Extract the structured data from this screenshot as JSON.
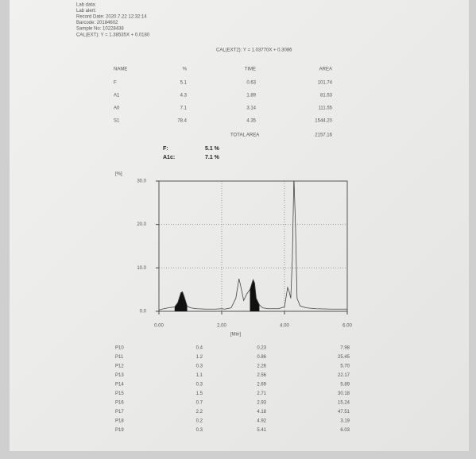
{
  "header": {
    "lines": [
      "Lab data:",
      "Lab alert:",
      "Record Date: 2020.7.22 12:32:14",
      "Barcode: 20184602",
      "Sample No: 10228438"
    ],
    "cal_ext": "CAL(EXT): Y = 1.38535X + 0.0180",
    "cal_ext2": "CAL(EXT2): Y = 1.03770X + 0.3086"
  },
  "summary": {
    "columns": [
      "NAME",
      "%",
      "TIME",
      "AREA"
    ],
    "rows": [
      [
        "F",
        "5.1",
        "0.63",
        "101.74"
      ],
      [
        "A1",
        "4.3",
        "1.89",
        "81.53"
      ],
      [
        "A0",
        "7.1",
        "3.14",
        "111.55"
      ],
      [
        "S1",
        "78.4",
        "4.35",
        "1544.20"
      ]
    ],
    "total_label": "TOTAL AREA",
    "total_value": "2157.16"
  },
  "results": [
    {
      "name": "F:",
      "value": "5.1 %"
    },
    {
      "name": "A1c:",
      "value": "7.1 %"
    }
  ],
  "chromatogram": {
    "type": "line",
    "ylabel": "[%]",
    "xlabel": "[Min]",
    "xlim": [
      0,
      6
    ],
    "ylim": [
      0,
      30
    ],
    "xticks": [
      {
        "value": 0,
        "label": "0.00"
      },
      {
        "value": 2,
        "label": "2.00"
      },
      {
        "value": 4,
        "label": "4.00"
      },
      {
        "value": 6,
        "label": "6.00"
      }
    ],
    "yticks": [
      {
        "value": 0,
        "label": "0.0"
      },
      {
        "value": 10,
        "label": "10.0"
      },
      {
        "value": 20,
        "label": "20.0"
      },
      {
        "value": 30,
        "label": "30.0"
      }
    ],
    "grid": true,
    "color": "#444444",
    "fill_color": "#111111",
    "x": [
      0,
      0.1,
      0.3,
      0.5,
      0.6,
      0.7,
      0.75,
      0.8,
      0.9,
      1.0,
      1.2,
      1.5,
      1.8,
      2.0,
      2.1,
      2.3,
      2.45,
      2.55,
      2.6,
      2.7,
      2.8,
      2.9,
      3.0,
      3.05,
      3.1,
      3.2,
      3.3,
      3.5,
      3.8,
      4.0,
      4.1,
      4.15,
      4.2,
      4.25,
      4.3,
      4.35,
      4.4,
      4.5,
      4.7,
      5.0,
      5.5,
      6.0
    ],
    "y": [
      0.3,
      0.5,
      0.8,
      1,
      2,
      4.3,
      4.5,
      3.5,
      1.2,
      0.8,
      0.6,
      0.5,
      0.5,
      0.6,
      0.5,
      0.8,
      3,
      7.5,
      6,
      2.5,
      4,
      5,
      7.3,
      6.5,
      3,
      1.5,
      0.8,
      0.6,
      0.6,
      1,
      5.5,
      4.5,
      3,
      12,
      31,
      20,
      3,
      1.2,
      0.8,
      0.6,
      0.5,
      0.5
    ],
    "filled_peaks": [
      {
        "x": [
          0.5,
          0.6,
          0.7,
          0.75,
          0.8,
          0.9
        ],
        "y": [
          1,
          2,
          4.3,
          4.5,
          3.5,
          1.2
        ]
      },
      {
        "x": [
          2.9,
          3.0,
          3.05,
          3.1,
          3.2
        ],
        "y": [
          5,
          7.3,
          6.5,
          3,
          1.5
        ]
      }
    ]
  },
  "peaks": {
    "rows": [
      [
        "P10",
        "0.4",
        "0.23",
        "7.98"
      ],
      [
        "P11",
        "1.2",
        "0.86",
        "25.45"
      ],
      [
        "P12",
        "0.3",
        "2.26",
        "5.70"
      ],
      [
        "P13",
        "1.1",
        "2.56",
        "22.17"
      ],
      [
        "P14",
        "0.3",
        "2.69",
        "5.89"
      ],
      [
        "P15",
        "1.5",
        "2.71",
        "30.18"
      ],
      [
        "P16",
        "0.7",
        "2.93",
        "15.24"
      ],
      [
        "P17",
        "2.2",
        "4.18",
        "47.51"
      ],
      [
        "P18",
        "0.2",
        "4.92",
        "3.19"
      ],
      [
        "P19",
        "0.3",
        "5.41",
        "6.03"
      ]
    ]
  }
}
